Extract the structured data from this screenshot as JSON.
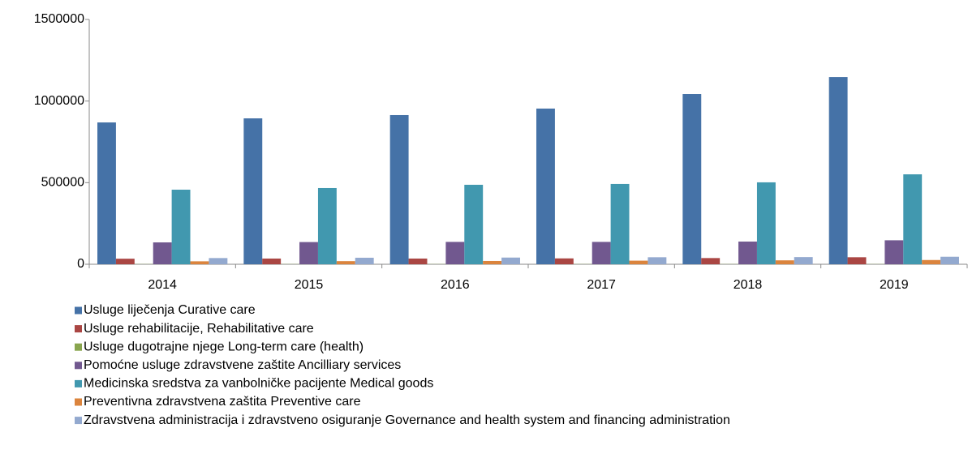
{
  "chart_data": {
    "type": "bar",
    "categories": [
      "2014",
      "2015",
      "2016",
      "2017",
      "2018",
      "2019"
    ],
    "series": [
      {
        "name": "Usluge liječenja Curative care",
        "color": "#4572a7",
        "values": [
          869000,
          894000,
          914000,
          954000,
          1043000,
          1147000
        ]
      },
      {
        "name": "Usluge rehabilitacije, Rehabilitative care",
        "color": "#aa4643",
        "values": [
          34000,
          35000,
          35000,
          36000,
          38000,
          43000
        ]
      },
      {
        "name": "Usluge dugotrajne njege Long-term care (health)",
        "color": "#89a54e",
        "values": [
          1000,
          1000,
          1000,
          1000,
          1000,
          1000
        ]
      },
      {
        "name": "Pomoćne usluge zdravstvene zaštite Ancilliary services",
        "color": "#71588f",
        "values": [
          134000,
          136000,
          137000,
          137000,
          139000,
          147000
        ]
      },
      {
        "name": "Medicinska sredstva za vanbolničke pacijente Medical goods",
        "color": "#4198af",
        "values": [
          457000,
          467000,
          487000,
          492000,
          502000,
          551000
        ]
      },
      {
        "name": "Preventivna zdravstvena zaštita Preventive care",
        "color": "#db843d",
        "values": [
          18000,
          19000,
          20000,
          22000,
          24000,
          26000
        ]
      },
      {
        "name": "Zdravstvena administracija i zdravstveno osiguranje Governance and health system and financing administration",
        "color": "#93a9cf",
        "values": [
          38000,
          40000,
          41000,
          43000,
          44000,
          46000
        ]
      }
    ],
    "ylim": [
      0,
      1500000
    ],
    "yticks": [
      0,
      500000,
      1000000,
      1500000
    ],
    "grid": false,
    "legend": "bottom"
  }
}
